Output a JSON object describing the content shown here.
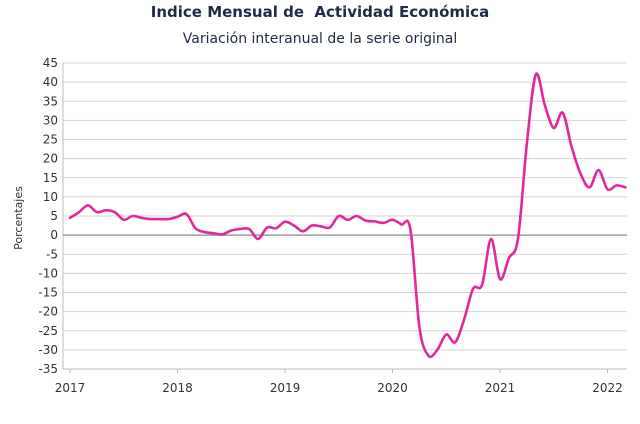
{
  "chart_data": {
    "type": "line",
    "title": "Indice Mensual de  Actividad Económica",
    "subtitle": "Variación interanual de la serie original",
    "ylabel": "Porcentajes",
    "xlabel": "",
    "ylim": [
      -35,
      45
    ],
    "yticks": [
      45,
      40,
      35,
      30,
      25,
      20,
      15,
      10,
      5,
      0,
      -5,
      -10,
      -15,
      -20,
      -25,
      -30,
      -35
    ],
    "xticks": [
      "2017",
      "2018",
      "2019",
      "2020",
      "2021",
      "2022"
    ],
    "grid": true,
    "series": [
      {
        "color": "#e0299b",
        "x": [
          "2017-01",
          "2017-02",
          "2017-03",
          "2017-04",
          "2017-05",
          "2017-06",
          "2017-07",
          "2017-08",
          "2017-09",
          "2017-10",
          "2017-11",
          "2017-12",
          "2018-01",
          "2018-02",
          "2018-03",
          "2018-04",
          "2018-05",
          "2018-06",
          "2018-07",
          "2018-08",
          "2018-09",
          "2018-10",
          "2018-11",
          "2018-12",
          "2019-01",
          "2019-02",
          "2019-03",
          "2019-04",
          "2019-05",
          "2019-06",
          "2019-07",
          "2019-08",
          "2019-09",
          "2019-10",
          "2019-11",
          "2019-12",
          "2020-01",
          "2020-02",
          "2020-03",
          "2020-04",
          "2020-05",
          "2020-06",
          "2020-07",
          "2020-08",
          "2020-09",
          "2020-10",
          "2020-11",
          "2020-12",
          "2021-01",
          "2021-02",
          "2021-03",
          "2021-04",
          "2021-05",
          "2021-06",
          "2021-07",
          "2021-08",
          "2021-09",
          "2021-10",
          "2021-11",
          "2021-12",
          "2022-01",
          "2022-02",
          "2022-03"
        ],
        "y": [
          4.5,
          6,
          7.8,
          6,
          6.5,
          6,
          4,
          5,
          4.5,
          4.2,
          4.2,
          4.2,
          4.8,
          5.5,
          1.8,
          0.8,
          0.5,
          0.2,
          1.2,
          1.6,
          1.6,
          -1,
          2,
          1.8,
          3.5,
          2.5,
          1,
          2.5,
          2.3,
          2,
          5,
          4,
          5,
          3.8,
          3.6,
          3.2,
          4,
          2.8,
          1.5,
          -24,
          -31.5,
          -30,
          -26,
          -28,
          -22,
          -14,
          -13,
          -1,
          -11.5,
          -6,
          -1,
          24,
          42,
          34,
          28,
          32,
          23,
          16,
          12.5,
          17,
          12,
          13,
          12.5
        ]
      }
    ]
  }
}
